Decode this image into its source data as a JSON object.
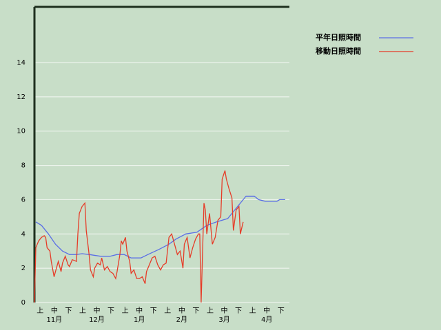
{
  "chart_data": {
    "type": "line",
    "categories": [
      "上",
      "中",
      "下",
      "上",
      "中",
      "下",
      "上",
      "中",
      "下",
      "上",
      "中",
      "下",
      "上",
      "中",
      "下",
      "上",
      "中",
      "下"
    ],
    "months": [
      "11月",
      "12月",
      "1月",
      "2月",
      "3月",
      "4月"
    ],
    "xlim": [
      0,
      182
    ],
    "ylim": [
      0,
      17.25
    ],
    "yticks": [
      0,
      2,
      4,
      6,
      8,
      10,
      12,
      14
    ],
    "grid": true,
    "legend": "top-right",
    "series": [
      {
        "name": "平年日照時間",
        "color": "#5a6ee6",
        "x": [
          1,
          5,
          10,
          15,
          20,
          25,
          30,
          34,
          39,
          47,
          54,
          59,
          64,
          69,
          76,
          81,
          89,
          96,
          101,
          108,
          116,
          123,
          130,
          138,
          143,
          148,
          151,
          157,
          160,
          165,
          173,
          175,
          179
        ],
        "values": [
          4.7,
          4.5,
          4.0,
          3.4,
          3.0,
          2.8,
          2.8,
          2.85,
          2.8,
          2.7,
          2.7,
          2.8,
          2.8,
          2.6,
          2.6,
          2.8,
          3.1,
          3.4,
          3.7,
          4.0,
          4.1,
          4.5,
          4.7,
          4.9,
          5.4,
          5.9,
          6.2,
          6.2,
          6.0,
          5.9,
          5.9,
          6.0,
          6.0
        ]
      },
      {
        "name": "移動日照時間",
        "color": "#e63c28",
        "x": [
          0,
          1,
          3,
          5,
          7,
          8,
          9,
          11,
          12,
          14,
          15,
          17,
          19,
          20,
          22,
          24,
          25,
          27,
          30,
          31,
          32,
          34,
          36,
          37,
          39,
          40,
          42,
          43,
          45,
          47,
          48,
          50,
          52,
          54,
          56,
          58,
          59,
          61,
          62,
          63,
          65,
          66,
          68,
          69,
          71,
          73,
          75,
          77,
          79,
          80,
          82,
          84,
          86,
          88,
          90,
          92,
          94,
          96,
          98,
          100,
          102,
          104,
          106,
          107,
          109,
          111,
          113,
          115,
          117,
          118,
          119,
          121,
          122,
          123,
          125,
          127,
          129,
          131,
          133,
          134,
          136,
          137,
          139,
          141,
          142,
          144,
          146,
          147,
          149
        ],
        "values": [
          0,
          3.2,
          3.6,
          3.8,
          3.9,
          3.8,
          3.2,
          3.0,
          2.4,
          1.5,
          1.8,
          2.4,
          1.8,
          2.3,
          2.7,
          2.2,
          2.1,
          2.5,
          2.4,
          4.0,
          5.2,
          5.6,
          5.8,
          4.2,
          2.8,
          1.9,
          1.5,
          2.0,
          2.3,
          2.2,
          2.6,
          1.9,
          2.1,
          1.8,
          1.7,
          1.4,
          1.8,
          2.8,
          3.6,
          3.4,
          3.8,
          3.0,
          2.4,
          1.7,
          1.9,
          1.4,
          1.4,
          1.5,
          1.1,
          1.8,
          2.2,
          2.6,
          2.7,
          2.2,
          1.9,
          2.2,
          2.3,
          3.8,
          4.0,
          3.4,
          2.8,
          3.0,
          2.0,
          3.4,
          3.8,
          2.6,
          3.2,
          3.7,
          4.0,
          4.0,
          0,
          5.8,
          5.4,
          4.0,
          5.2,
          3.4,
          3.8,
          4.8,
          5.0,
          7.2,
          7.7,
          7.2,
          6.6,
          6.1,
          4.2,
          5.4,
          5.6,
          4.0,
          4.7
        ]
      }
    ]
  }
}
